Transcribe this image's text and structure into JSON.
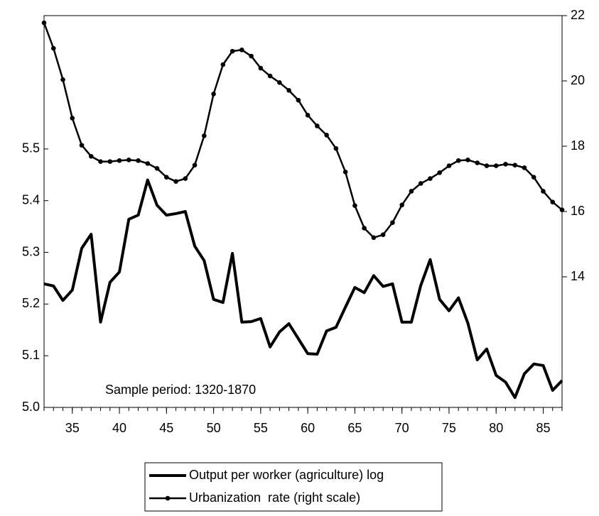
{
  "chart_data": {
    "type": "line",
    "annotation": "Sample period: 1320-1870",
    "x": [
      32,
      33,
      34,
      35,
      36,
      37,
      38,
      39,
      40,
      41,
      42,
      43,
      44,
      45,
      46,
      47,
      48,
      49,
      50,
      51,
      52,
      53,
      54,
      55,
      56,
      57,
      58,
      59,
      60,
      61,
      62,
      63,
      64,
      65,
      66,
      67,
      68,
      69,
      70,
      71,
      72,
      73,
      74,
      75,
      76,
      77,
      78,
      79,
      80,
      81,
      82,
      83,
      84,
      85,
      86,
      87
    ],
    "xlim": [
      32,
      87
    ],
    "xticks": [
      35,
      40,
      45,
      50,
      55,
      60,
      65,
      70,
      75,
      80,
      85
    ],
    "ylim": [
      5.0,
      5.758
    ],
    "yticks": [
      {
        "value": 5,
        "label": "5.0"
      },
      5.1,
      5.2,
      5.3,
      5.4,
      5.5
    ],
    "y2lim": [
      10,
      22
    ],
    "y2ticks": [
      14,
      16,
      18,
      20,
      22
    ],
    "series": [
      {
        "name": "Output per worker (agriculture) log",
        "color": "#000000",
        "marker": false,
        "values": [
          5.239,
          5.235,
          5.207,
          5.227,
          5.308,
          5.335,
          5.165,
          5.242,
          5.262,
          5.364,
          5.372,
          5.44,
          5.391,
          5.372,
          5.375,
          5.379,
          5.312,
          5.284,
          5.209,
          5.203,
          5.298,
          5.165,
          5.166,
          5.172,
          5.117,
          5.146,
          5.162,
          5.133,
          5.104,
          5.103,
          5.148,
          5.155,
          5.194,
          5.232,
          5.222,
          5.255,
          5.234,
          5.239,
          5.165,
          5.165,
          5.236,
          5.286,
          5.209,
          5.187,
          5.212,
          5.163,
          5.092,
          5.113,
          5.062,
          5.049,
          5.019,
          5.065,
          5.084,
          5.081,
          5.033,
          5.052
        ]
      },
      {
        "name": "Urbanization  rate (right scale)",
        "color": "#000000",
        "marker": true,
        "axis": "y2",
        "values": [
          21.78,
          21.0,
          20.04,
          18.86,
          18.03,
          17.69,
          17.53,
          17.53,
          17.56,
          17.58,
          17.56,
          17.47,
          17.32,
          17.05,
          16.92,
          17.01,
          17.42,
          18.32,
          19.6,
          20.5,
          20.91,
          20.95,
          20.76,
          20.39,
          20.15,
          19.95,
          19.71,
          19.41,
          18.95,
          18.62,
          18.34,
          17.93,
          17.21,
          16.18,
          15.49,
          15.2,
          15.29,
          15.66,
          16.2,
          16.62,
          16.86,
          17.01,
          17.19,
          17.4,
          17.56,
          17.58,
          17.49,
          17.4,
          17.4,
          17.45,
          17.42,
          17.34,
          17.05,
          16.62,
          16.29,
          16.05
        ]
      }
    ]
  }
}
